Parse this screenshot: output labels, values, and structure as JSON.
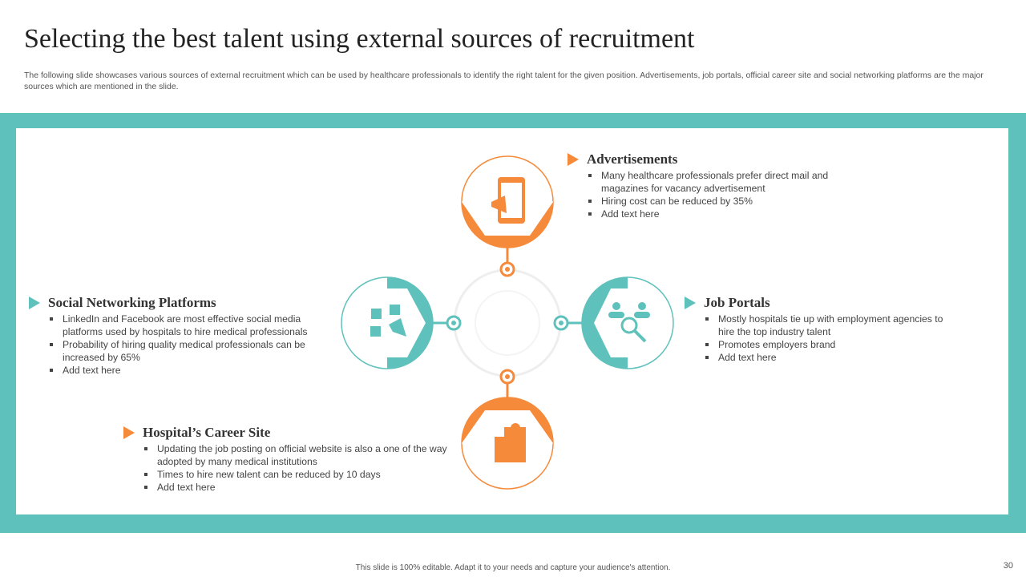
{
  "title": "Selecting the best talent using external sources of recruitment",
  "subtitle": "The following slide showcases various sources of external recruitment which can be used by healthcare professionals to identify the right talent for the given position. Advertisements, job portals, official career site and social networking platforms are the major sources which are mentioned in the slide.",
  "colors": {
    "teal": "#5fc1bb",
    "orange": "#f58a3b"
  },
  "sections": [
    {
      "title": "Advertisements",
      "icon": "mobile-megaphone-icon",
      "bullets": [
        "Many healthcare professionals prefer direct mail and magazines for vacancy advertisement",
        "Hiring cost can be reduced by 35%",
        "Add text here"
      ]
    },
    {
      "title": "Job Portals",
      "icon": "people-search-icon",
      "bullets": [
        "Mostly hospitals tie up with employment agencies to hire the top industry talent",
        "Promotes employers brand",
        "Add text here"
      ]
    },
    {
      "title": "Hospital’s Career Site",
      "icon": "hospital-icon",
      "bullets": [
        "Updating the job posting on official website is also a one of the way adopted by many medical institutions",
        "Times to hire new talent can be reduced by 10 days",
        "Add text here"
      ]
    },
    {
      "title": "Social Networking Platforms",
      "icon": "social-media-megaphone-icon",
      "bullets": [
        "LinkedIn and Facebook are most effective social media platforms used by hospitals to hire medical professionals",
        "Probability of hiring quality medical professionals can be increased by 65%",
        "Add text here"
      ]
    }
  ],
  "footer": "This slide is 100% editable. Adapt it to your needs and capture your audience's attention.",
  "page_number": "30"
}
